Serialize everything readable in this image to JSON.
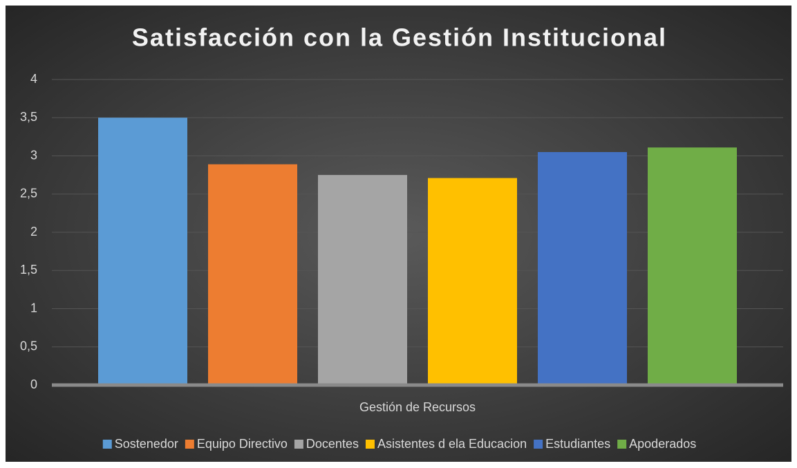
{
  "chart_data": {
    "type": "bar",
    "title": "Satisfacción con la Gestión Institucional",
    "categories": [
      "Gestión de Recursos"
    ],
    "series": [
      {
        "name": "Sostenedor",
        "color": "#5b9bd5",
        "values": [
          3.5
        ]
      },
      {
        "name": "Equipo Directivo",
        "color": "#ed7d31",
        "values": [
          2.89
        ]
      },
      {
        "name": "Docentes",
        "color": "#a5a5a5",
        "values": [
          2.75
        ]
      },
      {
        "name": "Asistentes d ela Educacion",
        "color": "#ffc000",
        "values": [
          2.71
        ]
      },
      {
        "name": "Estudiantes",
        "color": "#4472c4",
        "values": [
          3.05
        ]
      },
      {
        "name": "Apoderados",
        "color": "#70ad47",
        "values": [
          3.11
        ]
      }
    ],
    "ylim": [
      0,
      4
    ],
    "yticks": [
      0,
      {
        "value": 0.5,
        "label": "0,5"
      },
      1,
      {
        "value": 1.5,
        "label": "1,5"
      },
      2,
      {
        "value": 2.5,
        "label": "2,5"
      },
      3,
      {
        "value": 3.5,
        "label": "3,5"
      },
      4
    ],
    "grid": true,
    "legend": "bottom"
  }
}
